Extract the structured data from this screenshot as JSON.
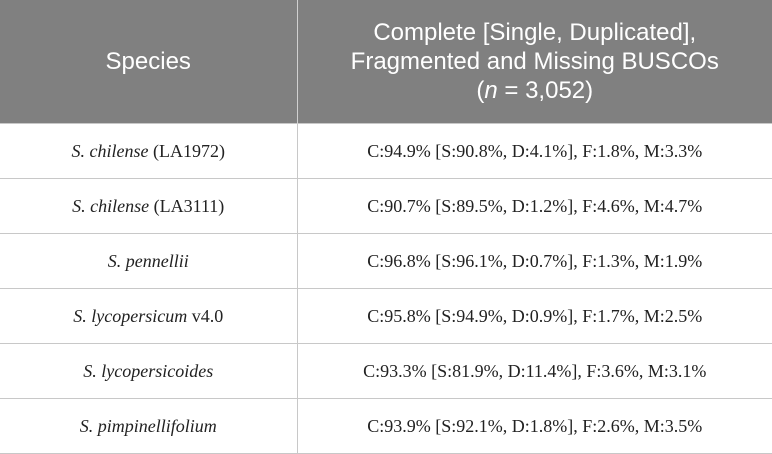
{
  "header": {
    "columns": [
      {
        "lines": [
          "Species"
        ]
      },
      {
        "lines": [
          "Complete [Single, Duplicated],",
          "Fragmented and Missing BUSCOs"
        ],
        "n_prefix": "(",
        "variable": "n",
        "n_suffix": "= 3,052)"
      }
    ]
  },
  "table": {
    "rows": [
      {
        "species": "S. chilense",
        "suffix": "(LA1972)",
        "busco": "C:94.9% [S:90.8%, D:4.1%], F:1.8%, M:3.3%"
      },
      {
        "species": "S. chilense",
        "suffix": "(LA3111)",
        "busco": "C:90.7% [S:89.5%, D:1.2%], F:4.6%, M:4.7%"
      },
      {
        "species": "S. pennellii",
        "busco": "C:96.8% [S:96.1%, D:0.7%], F:1.3%, M:1.9%"
      },
      {
        "species": "S. lycopersicum",
        "suffix": "v4.0",
        "busco": "C:95.8% [S:94.9%, D:0.9%], F:1.7%, M:2.5%"
      },
      {
        "species": "S. lycopersicoides",
        "busco": "C:93.3% [S:81.9%, D:11.4%], F:3.6%, M:3.1%"
      },
      {
        "species": "S. pimpinellifolium",
        "busco": "C:93.9% [S:92.1%, D:1.8%], F:2.6%, M:3.5%"
      }
    ]
  }
}
